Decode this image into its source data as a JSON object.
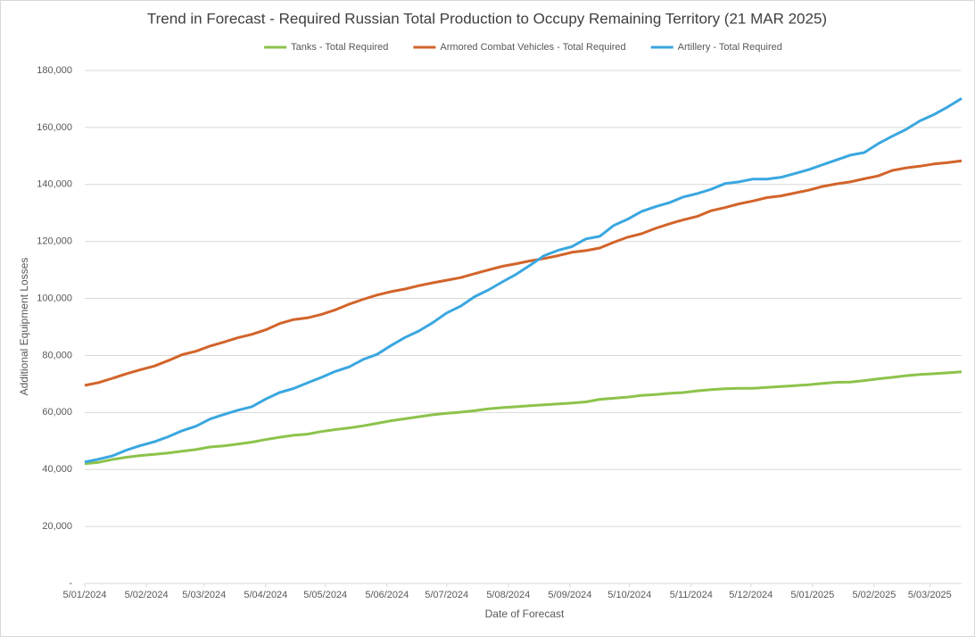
{
  "chart_data": {
    "type": "line",
    "title": "Trend in Forecast - Required Russian Total Production to Occupy Remaining Territory (21 MAR 2025)",
    "x_label": "Date of Forecast",
    "y_label": "Additional Equipment Losses",
    "legend": "top",
    "grid": true,
    "x": [
      "2024-01-05",
      "2024-01-12",
      "2024-01-19",
      "2024-01-26",
      "2024-02-02",
      "2024-02-09",
      "2024-02-16",
      "2024-02-23",
      "2024-03-01",
      "2024-03-08",
      "2024-03-15",
      "2024-03-22",
      "2024-03-29",
      "2024-04-05",
      "2024-04-12",
      "2024-04-19",
      "2024-04-26",
      "2024-05-03",
      "2024-05-10",
      "2024-05-17",
      "2024-05-24",
      "2024-05-31",
      "2024-06-07",
      "2024-06-14",
      "2024-06-21",
      "2024-06-28",
      "2024-07-05",
      "2024-07-12",
      "2024-07-19",
      "2024-07-26",
      "2024-08-02",
      "2024-08-09",
      "2024-08-16",
      "2024-08-23",
      "2024-08-30",
      "2024-09-06",
      "2024-09-13",
      "2024-09-20",
      "2024-09-27",
      "2024-10-04",
      "2024-10-11",
      "2024-10-18",
      "2024-10-25",
      "2024-11-01",
      "2024-11-08",
      "2024-11-15",
      "2024-11-22",
      "2024-11-29",
      "2024-12-06",
      "2024-12-13",
      "2024-12-20",
      "2024-12-27",
      "2025-01-03",
      "2025-01-10",
      "2025-01-17",
      "2025-01-24",
      "2025-01-31",
      "2025-02-07",
      "2025-02-14",
      "2025-02-21",
      "2025-02-28",
      "2025-03-07",
      "2025-03-14",
      "2025-03-21"
    ],
    "xlim": [
      "2024-01-05",
      "2025-03-21"
    ],
    "xticks": [
      {
        "value": "2024-01-05",
        "label": "5/01/2024"
      },
      {
        "value": "2024-02-05",
        "label": "5/02/2024"
      },
      {
        "value": "2024-03-05",
        "label": "5/03/2024"
      },
      {
        "value": "2024-04-05",
        "label": "5/04/2024"
      },
      {
        "value": "2024-05-05",
        "label": "5/05/2024"
      },
      {
        "value": "2024-06-05",
        "label": "5/06/2024"
      },
      {
        "value": "2024-07-05",
        "label": "5/07/2024"
      },
      {
        "value": "2024-08-05",
        "label": "5/08/2024"
      },
      {
        "value": "2024-09-05",
        "label": "5/09/2024"
      },
      {
        "value": "2024-10-05",
        "label": "5/10/2024"
      },
      {
        "value": "2024-11-05",
        "label": "5/11/2024"
      },
      {
        "value": "2024-12-05",
        "label": "5/12/2024"
      },
      {
        "value": "2025-01-05",
        "label": "5/01/2025"
      },
      {
        "value": "2025-02-05",
        "label": "5/02/2025"
      },
      {
        "value": "2025-03-05",
        "label": "5/03/2025"
      }
    ],
    "ylim": [
      0,
      180000
    ],
    "yticks": [
      {
        "value": 0,
        "label": "-"
      },
      {
        "value": 20000,
        "label": "20,000"
      },
      {
        "value": 40000,
        "label": "40,000"
      },
      {
        "value": 60000,
        "label": "60,000"
      },
      {
        "value": 80000,
        "label": "80,000"
      },
      {
        "value": 100000,
        "label": "100,000"
      },
      {
        "value": 120000,
        "label": "120,000"
      },
      {
        "value": 140000,
        "label": "140,000"
      },
      {
        "value": 160000,
        "label": "160,000"
      },
      {
        "value": 180000,
        "label": "180,000"
      }
    ],
    "series": [
      {
        "name": "Tanks - Total Required",
        "color": "#8cc34b",
        "values": [
          42000,
          42500,
          43500,
          44300,
          44900,
          45300,
          45800,
          46400,
          47000,
          47900,
          48300,
          48900,
          49600,
          50500,
          51300,
          52000,
          52400,
          53300,
          54000,
          54600,
          55300,
          56200,
          57100,
          57800,
          58500,
          59200,
          59700,
          60100,
          60600,
          61300,
          61700,
          62000,
          62400,
          62700,
          63000,
          63300,
          63700,
          64600,
          65000,
          65400,
          66000,
          66300,
          66700,
          67000,
          67600,
          68000,
          68300,
          68500,
          68500,
          68800,
          69100,
          69400,
          69700,
          70200,
          70600,
          70700,
          71200,
          71800,
          72300,
          72900,
          73300,
          73600,
          73900,
          74300
        ]
      },
      {
        "name": "Armored Combat Vehicles - Total Required",
        "color": "#d2642a",
        "values": [
          69500,
          70500,
          72000,
          73600,
          75000,
          76300,
          78200,
          80300,
          81500,
          83300,
          84700,
          86200,
          87400,
          89000,
          91200,
          92600,
          93200,
          94400,
          96000,
          98000,
          99700,
          101200,
          102400,
          103300,
          104500,
          105500,
          106400,
          107300,
          108700,
          110000,
          111300,
          112200,
          113200,
          114000,
          115000,
          116200,
          116800,
          117700,
          119700,
          121500,
          122700,
          124600,
          126200,
          127600,
          128800,
          130800,
          131900,
          133200,
          134200,
          135400,
          136000,
          137000,
          138000,
          139300,
          140200,
          140900,
          142000,
          143000,
          144900,
          145800,
          146400,
          147200,
          147700,
          148300
        ]
      },
      {
        "name": "Artillery - Total Required",
        "color": "#3aa7e0",
        "values": [
          42600,
          43600,
          44800,
          46800,
          48400,
          49700,
          51500,
          53600,
          55200,
          57700,
          59300,
          60800,
          62000,
          64700,
          67000,
          68400,
          70400,
          72300,
          74400,
          76000,
          78600,
          80400,
          83500,
          86300,
          88600,
          91500,
          94900,
          97300,
          100600,
          103000,
          105800,
          108500,
          111700,
          115000,
          116900,
          118200,
          120900,
          121800,
          125600,
          127800,
          130500,
          132200,
          133600,
          135600,
          136800,
          138300,
          140300,
          140900,
          141900,
          141900,
          142500,
          143800,
          145200,
          146900,
          148600,
          150300,
          151200,
          154300,
          156900,
          159300,
          162300,
          164500,
          167200,
          170200
        ]
      }
    ]
  }
}
